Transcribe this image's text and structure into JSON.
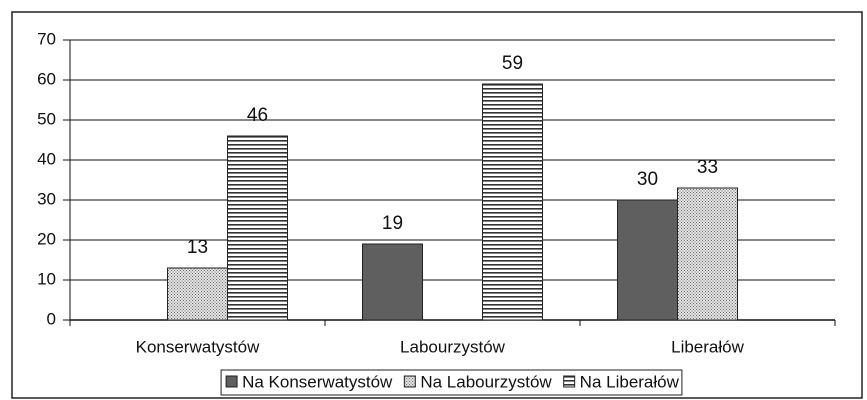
{
  "chart_data": {
    "type": "bar",
    "categories": [
      "Konserwatystów",
      "Labourzystów",
      "Liberałów"
    ],
    "series": [
      {
        "name": "Na Konserwatystów",
        "color": "#5f5f5f",
        "pattern": "solid",
        "values": [
          null,
          19,
          30
        ]
      },
      {
        "name": "Na Labourzystów",
        "color": "#6a6a6a",
        "pattern": "dots",
        "values": [
          13,
          null,
          33
        ]
      },
      {
        "name": "Na Liberałów",
        "color": "#333333",
        "pattern": "hlines",
        "values": [
          46,
          59,
          null
        ]
      }
    ],
    "ylim": [
      0,
      70
    ],
    "yticks": [
      0,
      10,
      20,
      30,
      40,
      50,
      60,
      70
    ],
    "grid": true,
    "legend": "bottom"
  }
}
